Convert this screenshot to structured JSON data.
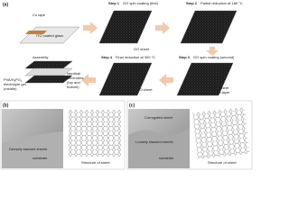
{
  "panel_a": {
    "label": "(a)",
    "start": {
      "cu_tape": "Cu tape",
      "glass": "ITO coated glass"
    },
    "steps": [
      {
        "step": "Step 1",
        "desc": "GO spin coating (first)",
        "note": [
          "GO sheet"
        ]
      },
      {
        "step": "Step 2",
        "desc": "Partial reduction at 180 °C",
        "note": []
      },
      {
        "step": "Step 3",
        "desc": "GO spin coating (second)",
        "note": [
          "GO sheet",
          "multi-layer"
        ]
      },
      {
        "step": "Step 4",
        "desc": "Final reduction at 300 °C",
        "note": [
          "rGO sheet"
        ]
      }
    ],
    "assembly": {
      "title": "Assembly",
      "electrolyte": [
        "PVA/H",
        "PO",
        "electrolyte gel",
        "(middle)"
      ],
      "electrodes": [
        "Identical",
        "electrodes",
        "(top and",
        "bottom)"
      ]
    }
  },
  "panel_b": {
    "label": "(b)",
    "annotations": [
      "Densely stacked sheets",
      "substrate"
    ],
    "structure": "Structure of sheet"
  },
  "panel_c": {
    "label": "(c)",
    "annotations": [
      "Corrugated sheet",
      "Loosely stacked sheets",
      "substrate"
    ],
    "structure": "Structure of sheet"
  }
}
